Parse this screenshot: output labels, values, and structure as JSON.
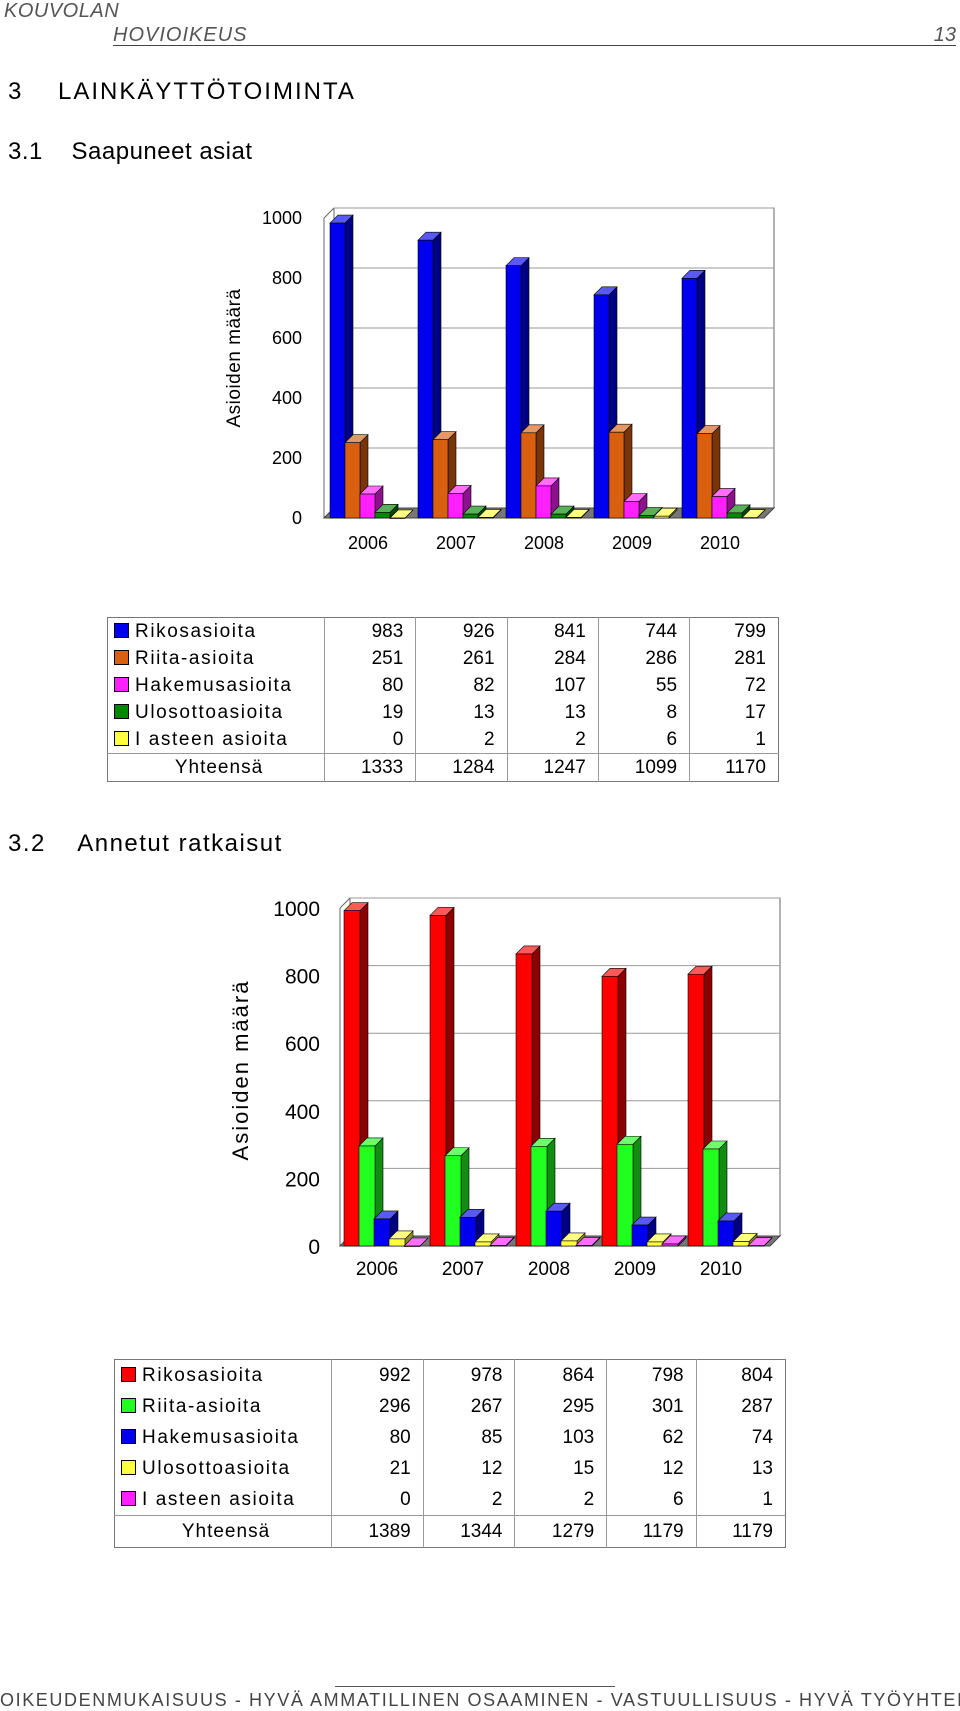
{
  "header": {
    "org": "KOUVOLAN",
    "court": "HOVIOIKEUS",
    "page_number": "13"
  },
  "section_title": "3    LAINKÄYTTÖTOIMINTA",
  "subsection1_title": "3.1    Saapuneet asiat",
  "subsection2_title": "3.2    Annetut ratkaisut",
  "total_label": "Yhteensä",
  "footer_text": "OIKEUDENMUKAISUUS - HYVÄ AMMATILLINEN OSAAMINEN - VASTUULLISUUS - HYVÄ TYÖYHTEISÖ",
  "chart_data": [
    {
      "type": "bar",
      "ylabel": "Asioiden määrä",
      "ylim": [
        0,
        1000
      ],
      "yticks": [
        0,
        200,
        400,
        600,
        800,
        1000
      ],
      "categories": [
        "2006",
        "2007",
        "2008",
        "2009",
        "2010"
      ],
      "series": [
        {
          "name": "Rikosasioita",
          "color": "#0000ee",
          "values": [
            983,
            926,
            841,
            744,
            799
          ]
        },
        {
          "name": "Riita-asioita",
          "color": "#d86010",
          "values": [
            251,
            261,
            284,
            286,
            281
          ]
        },
        {
          "name": "Hakemusasioita",
          "color": "#ff20ff",
          "values": [
            80,
            82,
            107,
            55,
            72
          ]
        },
        {
          "name": "Ulosottoasioita",
          "color": "#008800",
          "values": [
            19,
            13,
            13,
            8,
            17
          ]
        },
        {
          "name": "I asteen asioita",
          "color": "#ffff40",
          "values": [
            0,
            2,
            2,
            6,
            1
          ]
        }
      ],
      "totals": [
        1333,
        1284,
        1247,
        1099,
        1170
      ],
      "grid": true,
      "legend": "table below chart"
    },
    {
      "type": "bar",
      "ylabel": "Asioiden määrä",
      "ylim": [
        0,
        1000
      ],
      "yticks": [
        0,
        200,
        400,
        600,
        800,
        1000
      ],
      "categories": [
        "2006",
        "2007",
        "2008",
        "2009",
        "2010"
      ],
      "series": [
        {
          "name": "Rikosasioita",
          "color": "#ff0000",
          "values": [
            992,
            978,
            864,
            798,
            804
          ]
        },
        {
          "name": "Riita-asioita",
          "color": "#20ff20",
          "values": [
            296,
            267,
            295,
            301,
            287
          ]
        },
        {
          "name": "Hakemusasioita",
          "color": "#0000ee",
          "values": [
            80,
            85,
            103,
            62,
            74
          ]
        },
        {
          "name": "Ulosottoasioita",
          "color": "#ffff40",
          "values": [
            21,
            12,
            15,
            12,
            13
          ]
        },
        {
          "name": "I asteen asioita",
          "color": "#ff20ff",
          "values": [
            0,
            2,
            2,
            6,
            1
          ]
        }
      ],
      "totals": [
        1389,
        1344,
        1279,
        1179,
        1179
      ],
      "grid": true,
      "legend": "table below chart"
    }
  ]
}
